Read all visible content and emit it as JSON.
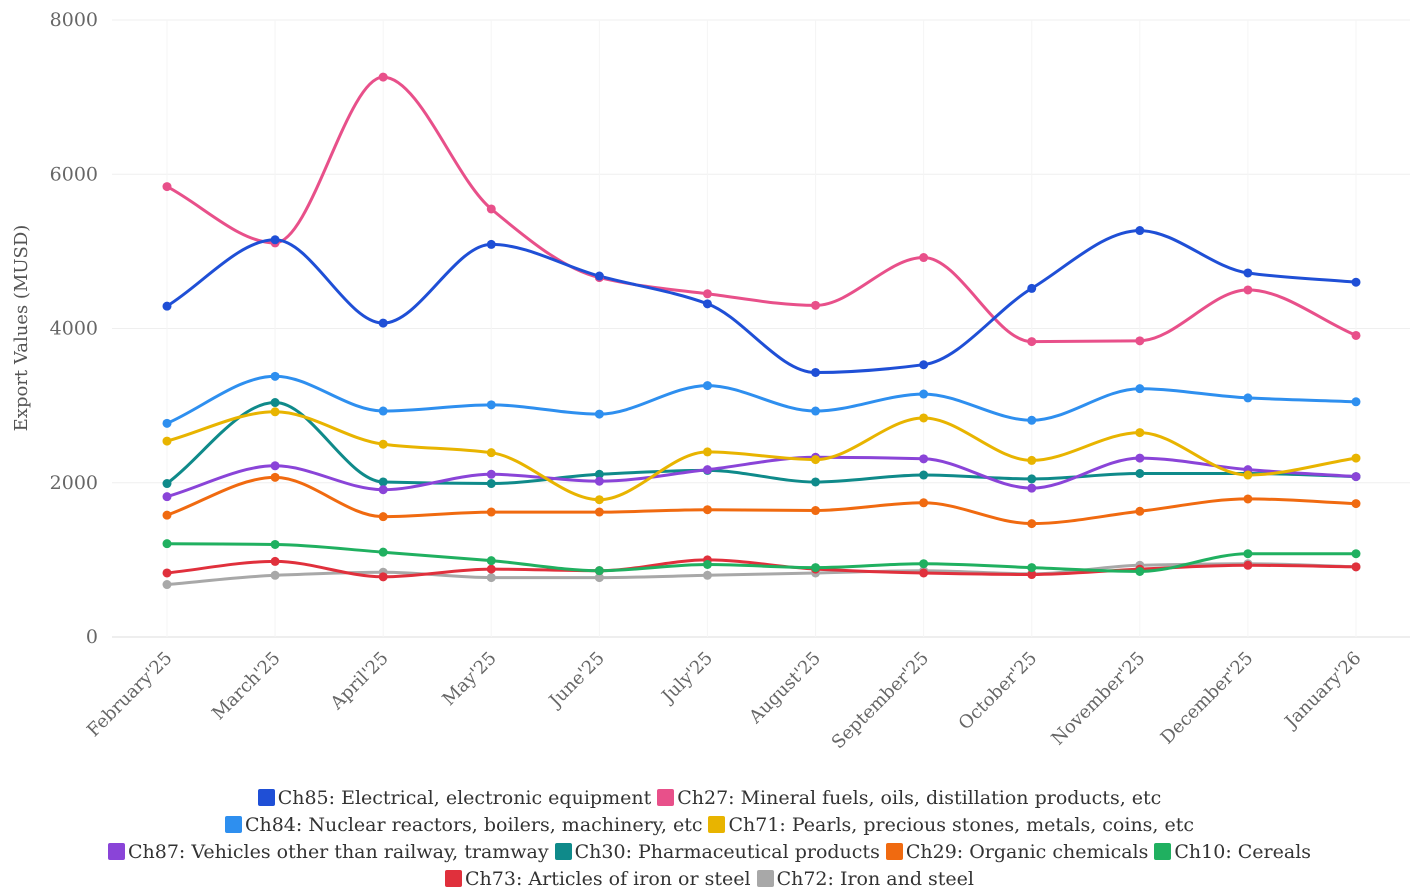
{
  "chart_data": {
    "type": "line",
    "title": "",
    "xlabel": "",
    "ylabel": "Export Values (MUSD)",
    "ylim": [
      0,
      8000
    ],
    "yticks": [
      0,
      2000,
      4000,
      6000,
      8000
    ],
    "grid": true,
    "legend_position": "bottom",
    "categories": [
      "February'25",
      "March'25",
      "April'25",
      "May'25",
      "June'25",
      "July'25",
      "August'25",
      "September'25",
      "October'25",
      "November'25",
      "December'25",
      "January'26"
    ],
    "series": [
      {
        "name": "Ch85:  Electrical, electronic equipment",
        "color": "#1f4fd6",
        "values": [
          4290,
          5150,
          4070,
          5090,
          4680,
          4320,
          3430,
          3530,
          4520,
          5270,
          4720,
          4600
        ]
      },
      {
        "name": "Ch27:  Mineral fuels, oils, distillation products, etc",
        "color": "#e8508a",
        "values": [
          5840,
          5110,
          7260,
          5550,
          4660,
          4450,
          4300,
          4920,
          3830,
          3840,
          4500,
          3910
        ]
      },
      {
        "name": "Ch84:  Nuclear reactors, boilers, machinery, etc",
        "color": "#2e8fef",
        "values": [
          2770,
          3380,
          2930,
          3010,
          2890,
          3260,
          2930,
          3150,
          2810,
          3220,
          3100,
          3050
        ]
      },
      {
        "name": "Ch71:  Pearls, precious stones, metals, coins, etc",
        "color": "#e8b400",
        "values": [
          2540,
          2920,
          2500,
          2390,
          1780,
          2400,
          2300,
          2840,
          2290,
          2650,
          2100,
          2320
        ]
      },
      {
        "name": "Ch87:  Vehicles other than railway, tramway",
        "color": "#8a44d8",
        "values": [
          1820,
          2220,
          1910,
          2110,
          2020,
          2170,
          2330,
          2310,
          1930,
          2320,
          2170,
          2080
        ]
      },
      {
        "name": "Ch30:  Pharmaceutical products",
        "color": "#0f8a8a",
        "values": [
          1990,
          3040,
          2010,
          1990,
          2110,
          2160,
          2010,
          2100,
          2050,
          2120,
          2120,
          2080
        ]
      },
      {
        "name": "Ch29:  Organic chemicals",
        "color": "#f06a10",
        "values": [
          1580,
          2070,
          1560,
          1620,
          1620,
          1650,
          1640,
          1740,
          1470,
          1630,
          1790,
          1730
        ]
      },
      {
        "name": "Ch10:  Cereals",
        "color": "#20b060",
        "values": [
          1210,
          1200,
          1100,
          990,
          860,
          940,
          900,
          950,
          900,
          850,
          1080,
          1080
        ]
      },
      {
        "name": "Ch73:  Articles of iron or steel",
        "color": "#e0303c",
        "values": [
          830,
          980,
          780,
          880,
          860,
          1000,
          880,
          830,
          810,
          880,
          930,
          910
        ]
      },
      {
        "name": "Ch72:  Iron and steel",
        "color": "#a8a8a8",
        "values": [
          680,
          800,
          840,
          770,
          770,
          800,
          830,
          860,
          820,
          930,
          950,
          910
        ]
      }
    ]
  }
}
